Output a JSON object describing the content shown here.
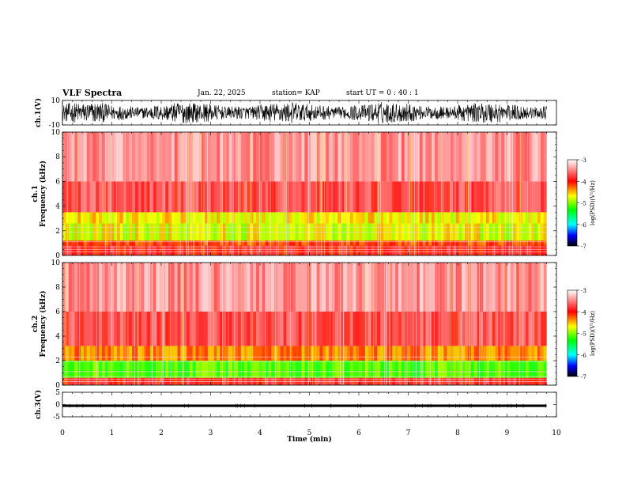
{
  "header": {
    "title": "VLF Spectra",
    "date": "Jan. 22, 2025",
    "station": "station= KAP",
    "start": "start  UT =   0 : 40 : 1"
  },
  "chart_data": [
    {
      "type": "line",
      "panel": "ch1-waveform",
      "ylabel": "ch.1(V)",
      "ylim": [
        -10,
        10
      ],
      "yticks": [
        "10",
        "-10"
      ],
      "xlim": [
        0,
        10
      ],
      "duration_min": 9.8,
      "description_values": "dense oscillating waveform spanning roughly -8 to +8 V",
      "color": "#000000"
    },
    {
      "type": "heatmap",
      "panel": "ch1-spectrogram",
      "ylabel": "ch.1\nFrequency  (kHz)",
      "ylim": [
        0,
        10
      ],
      "yticks": [
        "0",
        "2",
        "4",
        "6",
        "8",
        "10"
      ],
      "xlim": [
        0,
        10
      ],
      "duration_min": 9.8,
      "bands": [
        {
          "f0": 0.0,
          "f1": 0.8,
          "level": -3.9
        },
        {
          "f0": 0.8,
          "f1": 1.2,
          "level": -4.1
        },
        {
          "f0": 1.2,
          "f1": 2.6,
          "level": -4.7
        },
        {
          "f0": 2.6,
          "f1": 3.5,
          "level": -4.6
        },
        {
          "f0": 3.5,
          "f1": 6.0,
          "level": -3.7
        },
        {
          "f0": 6.0,
          "f1": 10.0,
          "level": -3.4
        }
      ],
      "colorbar": {
        "label": "log(PSD)(V²/Hz)",
        "range": [
          -7,
          -3
        ],
        "ticks": [
          "-3",
          "-4",
          "-5",
          "-6",
          "-7"
        ]
      }
    },
    {
      "type": "heatmap",
      "panel": "ch2-spectrogram",
      "ylabel": "ch.2\nFrequency  (kHz)",
      "ylim": [
        0,
        10
      ],
      "yticks": [
        "0",
        "2",
        "4",
        "6",
        "8",
        "10"
      ],
      "xlim": [
        0,
        10
      ],
      "duration_min": 9.8,
      "bands": [
        {
          "f0": 0.0,
          "f1": 0.6,
          "level": -3.8
        },
        {
          "f0": 0.6,
          "f1": 2.0,
          "level": -5.1
        },
        {
          "f0": 2.0,
          "f1": 3.2,
          "level": -4.3
        },
        {
          "f0": 3.2,
          "f1": 6.0,
          "level": -3.7
        },
        {
          "f0": 6.0,
          "f1": 10.0,
          "level": -3.4
        }
      ],
      "colorbar": {
        "label": "log(PSD)(V²/Hz)",
        "range": [
          -7,
          -3
        ],
        "ticks": [
          "-3",
          "-4",
          "-5",
          "-6",
          "-7"
        ]
      }
    },
    {
      "type": "line",
      "panel": "ch3-waveform",
      "ylabel": "ch.3(V)",
      "ylim": [
        -5,
        5
      ],
      "yticks": [
        "5",
        "0",
        "-5"
      ],
      "xlim": [
        0,
        10
      ],
      "duration_min": 9.8,
      "description_values": "near-constant band from about -1 to 0 V",
      "band": [
        -1.0,
        0.0
      ],
      "color": "#000000"
    }
  ],
  "xaxis": {
    "label": "Time  (min)",
    "ticks": [
      "0",
      "1",
      "2",
      "3",
      "4",
      "5",
      "6",
      "7",
      "8",
      "9",
      "10"
    ]
  }
}
